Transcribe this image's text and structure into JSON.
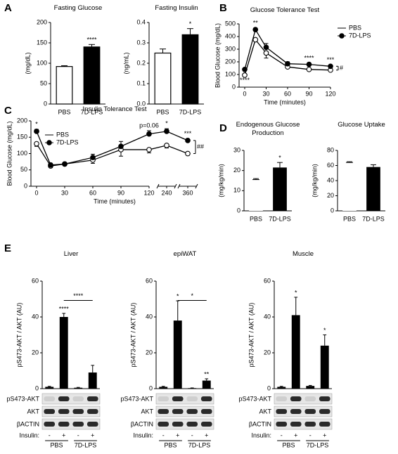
{
  "panels": [
    "A",
    "B",
    "C",
    "D",
    "E"
  ],
  "chart_data": [
    {
      "type": "bar",
      "title": "Fasting Glucose",
      "ylabel": "(mg/dL)",
      "categories": [
        "PBS",
        "7D-LPS"
      ],
      "values": [
        92,
        140
      ],
      "errors": [
        2,
        6
      ],
      "colors": [
        "#ffffff",
        "#000000"
      ],
      "bar_outline": true,
      "annotations": [
        null,
        "****"
      ],
      "ylim": [
        0,
        200
      ],
      "yticks": [
        0,
        50,
        100,
        150,
        200
      ]
    },
    {
      "type": "bar",
      "title": "Fasting Insulin",
      "ylabel": "(ng/mL)",
      "categories": [
        "PBS",
        "7D-LPS"
      ],
      "values": [
        0.25,
        0.34
      ],
      "errors": [
        0.02,
        0.03
      ],
      "colors": [
        "#ffffff",
        "#000000"
      ],
      "bar_outline": true,
      "annotations": [
        null,
        "*"
      ],
      "ylim": [
        0,
        0.4
      ],
      "yticks": [
        {
          "value": 0,
          "label": "0.0"
        },
        0.1,
        0.2,
        0.3,
        0.4
      ]
    },
    {
      "type": "line",
      "title": "Glucose Tolerance Test",
      "xlabel": "Time (minutes)",
      "ylabel": "Blood Glucose (mg/dL)",
      "x": [
        0,
        15,
        30,
        60,
        90,
        120
      ],
      "xlim": [
        0,
        120
      ],
      "xticks": [
        0,
        30,
        60,
        90,
        120
      ],
      "ylim": [
        0,
        500
      ],
      "yticks": [
        0,
        100,
        200,
        300,
        400,
        500
      ],
      "legend": "right",
      "side_note": "#",
      "series": [
        {
          "name": "PBS",
          "color": "#000000",
          "fill": "#ffffff",
          "values": [
            95,
            375,
            270,
            160,
            140,
            135
          ],
          "errors": [
            3,
            10,
            40,
            10,
            5,
            5
          ],
          "annotations": [
            "****",
            null,
            null,
            null,
            null,
            null
          ]
        },
        {
          "name": "7D-LPS",
          "color": "#000000",
          "fill": "#000000",
          "values": [
            140,
            455,
            315,
            185,
            180,
            165
          ],
          "errors": [
            5,
            12,
            30,
            15,
            8,
            8
          ],
          "annotations": [
            null,
            "**",
            null,
            null,
            "****",
            "***"
          ]
        }
      ]
    },
    {
      "type": "line",
      "title": "Insulin Tolerance Test",
      "xlabel": "Time (minutes)",
      "ylabel": "Blood Glucose (mg/dL)",
      "x": [
        0,
        15,
        30,
        60,
        90,
        120,
        240,
        360
      ],
      "xlim": [
        0,
        360
      ],
      "xticks": [
        0,
        30,
        60,
        90,
        120,
        240,
        360
      ],
      "axis_break_after": 120,
      "ylim": [
        0,
        200
      ],
      "yticks": [
        0,
        50,
        100,
        150,
        200
      ],
      "legend": "upper left",
      "side_note": "##",
      "series": [
        {
          "name": "PBS",
          "color": "#000000",
          "fill": "#ffffff",
          "values": [
            130,
            62,
            68,
            80,
            112,
            112,
            125,
            100
          ],
          "errors": [
            8,
            5,
            5,
            10,
            20,
            10,
            8,
            5
          ],
          "annotations": [
            null,
            null,
            null,
            null,
            null,
            null,
            null,
            null
          ]
        },
        {
          "name": "7D-LPS",
          "color": "#000000",
          "fill": "#000000",
          "values": [
            168,
            65,
            68,
            88,
            122,
            160,
            168,
            140
          ],
          "errors": [
            6,
            5,
            5,
            10,
            15,
            10,
            8,
            5
          ],
          "annotations": [
            "*",
            null,
            null,
            null,
            null,
            "p=0.06",
            "*",
            "***"
          ]
        }
      ]
    },
    {
      "type": "bar",
      "title": "Endogenous Glucose Production",
      "ylabel": "(mg/kg/min)",
      "categories": [
        "PBS",
        "7D-LPS"
      ],
      "values": [
        15.5,
        21.5
      ],
      "errors": [
        0.5,
        2.5
      ],
      "colors": [
        "#ffffff",
        "#000000"
      ],
      "bar_outline": false,
      "annotations": [
        null,
        "*"
      ],
      "ylim": [
        0,
        30
      ],
      "yticks": [
        0,
        10,
        20,
        30
      ]
    },
    {
      "type": "bar",
      "title": "Glucose Uptake",
      "ylabel": "(mg/kg/min)",
      "categories": [
        "PBS",
        "7D-LPS"
      ],
      "values": [
        64,
        58
      ],
      "errors": [
        1,
        3
      ],
      "colors": [
        "#ffffff",
        "#000000"
      ],
      "bar_outline": false,
      "annotations": [
        null,
        null
      ],
      "ylim": [
        0,
        80
      ],
      "yticks": [
        0,
        20,
        40,
        60,
        80
      ]
    },
    {
      "type": "bar",
      "title": "Liver",
      "ylabel": "pS473-AKT / AKT (AU)",
      "categories": [
        "-",
        "+",
        "-",
        "+"
      ],
      "groups": [
        "PBS",
        "7D-LPS"
      ],
      "insulin_label": "Insulin:",
      "blot_rows": [
        "pS473-AKT",
        "AKT",
        "βACTIN"
      ],
      "values": [
        1,
        40,
        0.5,
        9
      ],
      "errors": [
        0.3,
        2,
        0.2,
        4
      ],
      "colors": [
        "#000000",
        "#000000",
        "#000000",
        "#000000"
      ],
      "bar_outline": false,
      "annotations": [
        null,
        "****",
        null,
        null
      ],
      "bracket": "****",
      "ylim": [
        0,
        60
      ],
      "yticks": [
        0,
        20,
        40,
        60
      ]
    },
    {
      "type": "bar",
      "title": "epiWAT",
      "ylabel": "pS473-AKT / AKT (AU)",
      "categories": [
        "-",
        "+",
        "-",
        "+"
      ],
      "groups": [
        "PBS",
        "7D-LPS"
      ],
      "insulin_label": "Insulin:",
      "blot_rows": [
        "pS473-AKT",
        "AKT",
        "βACTIN"
      ],
      "values": [
        1,
        38,
        0.3,
        4.5
      ],
      "errors": [
        0.3,
        11,
        0.1,
        1
      ],
      "colors": [
        "#000000",
        "#000000",
        "#000000",
        "#000000"
      ],
      "bar_outline": false,
      "annotations": [
        null,
        "*",
        null,
        "**"
      ],
      "bracket": "*",
      "ylim": [
        0,
        60
      ],
      "yticks": [
        0,
        20,
        40,
        60
      ]
    },
    {
      "type": "bar",
      "title": "Muscle",
      "ylabel": "pS473-AKT / AKT (AU)",
      "categories": [
        "-",
        "+",
        "-",
        "+"
      ],
      "groups": [
        "PBS",
        "7D-LPS"
      ],
      "insulin_label": "Insulin:",
      "blot_rows": [
        "pS473-AKT",
        "AKT",
        "βACTIN"
      ],
      "values": [
        1,
        41,
        1.5,
        24
      ],
      "errors": [
        0.3,
        10,
        0.3,
        6
      ],
      "colors": [
        "#000000",
        "#000000",
        "#000000",
        "#000000"
      ],
      "bar_outline": false,
      "annotations": [
        null,
        "*",
        null,
        "*"
      ],
      "ylim": [
        0,
        60
      ],
      "yticks": [
        0,
        20,
        40,
        60
      ]
    }
  ]
}
